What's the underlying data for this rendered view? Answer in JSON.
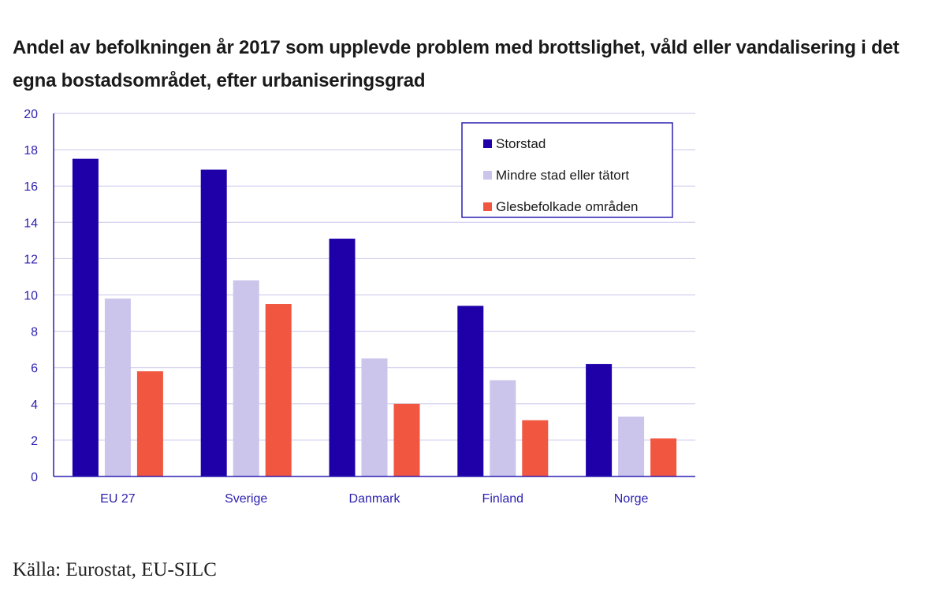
{
  "chart_data": {
    "type": "bar",
    "title": "Andel av befolkningen år 2017 som upplevde problem med brottslighet, våld eller vandalisering i det egna bostadsområdet, efter urbaniseringsgrad",
    "xlabel": "",
    "ylabel": "",
    "ylim": [
      0,
      20
    ],
    "yticks": [
      "0",
      "2",
      "4",
      "6",
      "8",
      "10",
      "12",
      "14",
      "16",
      "18",
      "20"
    ],
    "grid": true,
    "legend_position": "top-right",
    "categories": [
      "EU 27",
      "Sverige",
      "Danmark",
      "Finland",
      "Norge"
    ],
    "series": [
      {
        "name": "Storstad",
        "color": "#1f00a8",
        "values": [
          17.5,
          16.9,
          13.1,
          9.4,
          6.2
        ]
      },
      {
        "name": "Mindre stad eller tätort",
        "color": "#cbc5ec",
        "values": [
          9.8,
          10.8,
          6.5,
          5.3,
          3.3
        ]
      },
      {
        "name": "Glesbefolkade områden",
        "color": "#f05640",
        "values": [
          5.8,
          9.5,
          4.0,
          3.1,
          2.1
        ]
      }
    ]
  },
  "source": "Källa: Eurostat, EU-SILC"
}
